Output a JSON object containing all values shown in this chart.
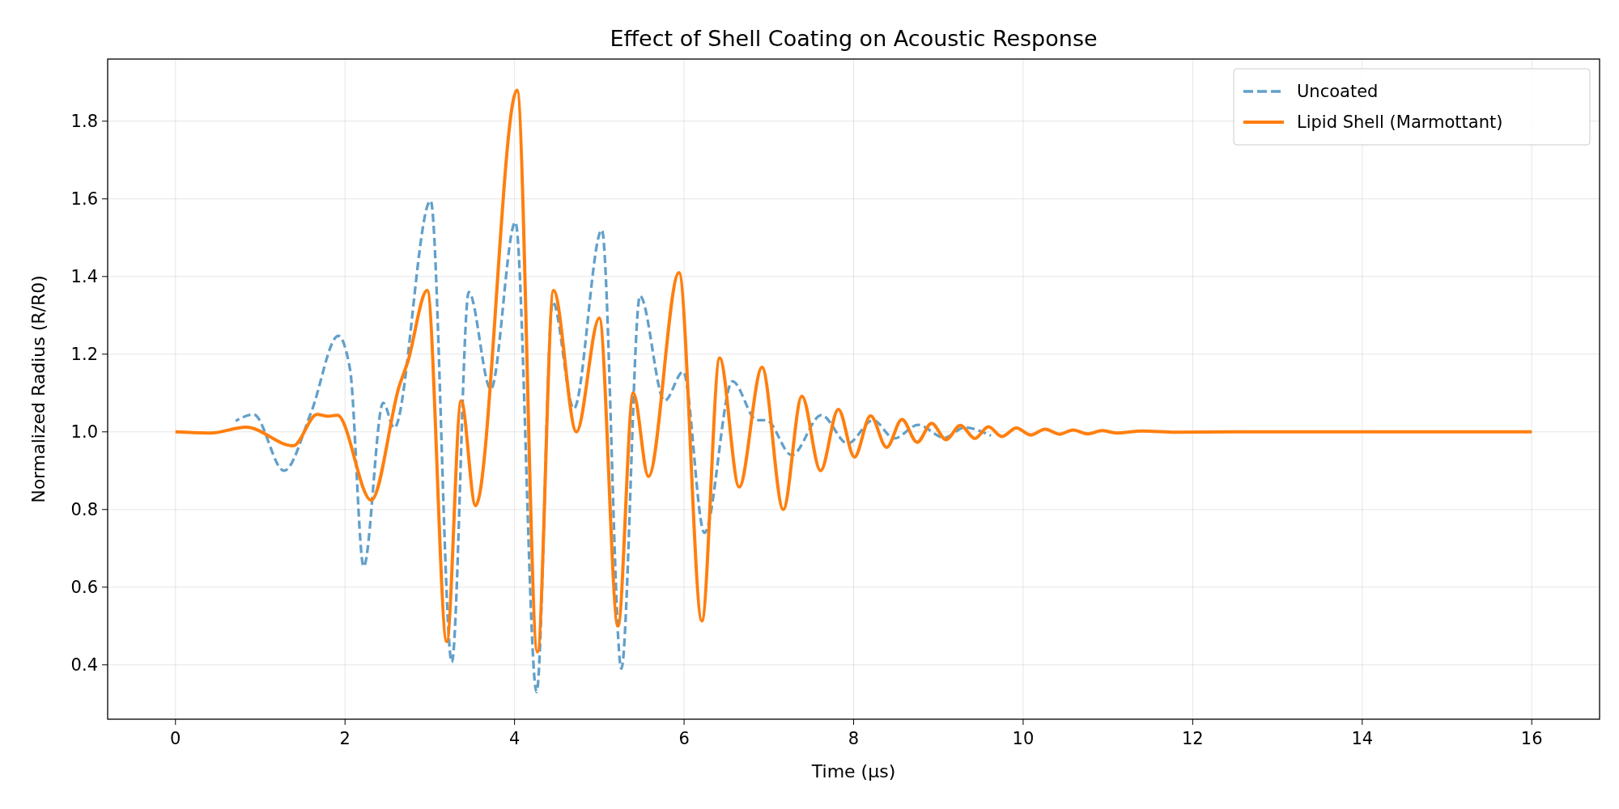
{
  "chart_data": {
    "type": "line",
    "title": "Effect of Shell Coating on Acoustic Response",
    "xlabel": "Time (μs)",
    "ylabel": "Normalized Radius (R/R0)",
    "xlim": [
      -0.8,
      16.8
    ],
    "ylim": [
      0.26,
      1.96
    ],
    "xticks": [
      0,
      2,
      4,
      6,
      8,
      10,
      12,
      14,
      16
    ],
    "yticks": [
      {
        "value": 0.4,
        "label": "0.4"
      },
      {
        "value": 0.6,
        "label": "0.6"
      },
      {
        "value": 0.8,
        "label": "0.8"
      },
      {
        "value": 1.0,
        "label": "1.0"
      },
      {
        "value": 1.2,
        "label": "1.2"
      },
      {
        "value": 1.4,
        "label": "1.4"
      },
      {
        "value": 1.6,
        "label": "1.6"
      },
      {
        "value": 1.8,
        "label": "1.8"
      }
    ],
    "grid": true,
    "legend": "top right",
    "series": [
      {
        "name": "Uncoated",
        "color": "#62a0ca",
        "line_style": "dashed",
        "x": [
          0.71,
          0.92,
          1.28,
          1.6,
          1.92,
          2.06,
          2.22,
          2.45,
          2.58,
          3.01,
          3.26,
          3.46,
          3.72,
          4.01,
          4.26,
          4.45,
          4.7,
          5.03,
          5.26,
          5.48,
          5.77,
          5.99,
          6.24,
          6.57,
          6.86,
          6.97,
          7.27,
          7.62,
          7.93,
          8.23,
          8.48,
          8.76,
          9.07,
          9.31,
          9.62
        ],
        "values": [
          1.028,
          1.045,
          0.9,
          1.05,
          1.247,
          1.16,
          0.653,
          1.075,
          1.01,
          1.595,
          0.407,
          1.36,
          1.11,
          1.54,
          0.33,
          1.335,
          1.06,
          1.52,
          0.39,
          1.35,
          1.08,
          1.155,
          0.74,
          1.13,
          1.03,
          1.03,
          0.94,
          1.043,
          0.97,
          1.03,
          0.983,
          1.018,
          0.985,
          1.011,
          0.99
        ]
      },
      {
        "name": "Lipid Shell (Marmottant)",
        "color": "#ff7f0e",
        "line_style": "solid",
        "x": [
          0,
          0.42,
          0.83,
          1.39,
          1.67,
          1.8,
          1.91,
          2.31,
          2.64,
          2.74,
          2.97,
          3.2,
          3.37,
          3.54,
          4.03,
          4.27,
          4.46,
          4.73,
          5.0,
          5.22,
          5.4,
          5.58,
          5.94,
          6.21,
          6.42,
          6.65,
          6.92,
          7.17,
          7.39,
          7.61,
          7.82,
          8.01,
          8.2,
          8.39,
          8.57,
          8.75,
          8.92,
          9.09,
          9.26,
          9.43,
          9.59,
          9.75,
          9.92,
          10.09,
          10.26,
          10.43,
          10.59,
          10.76,
          10.93,
          11.1,
          11.4,
          11.8,
          12.5,
          14,
          16
        ],
        "values": [
          1.0,
          0.997,
          1.012,
          0.964,
          1.045,
          1.04,
          1.043,
          0.824,
          1.118,
          1.18,
          1.364,
          0.46,
          1.08,
          0.81,
          1.88,
          0.433,
          1.364,
          1.0,
          1.293,
          0.5,
          1.1,
          0.885,
          1.41,
          0.513,
          1.19,
          0.858,
          1.166,
          0.8,
          1.092,
          0.9,
          1.058,
          0.935,
          1.041,
          0.96,
          1.032,
          0.973,
          1.022,
          0.98,
          1.017,
          0.983,
          1.013,
          0.988,
          1.01,
          0.992,
          1.007,
          0.994,
          1.005,
          0.995,
          1.003,
          0.997,
          1.002,
          0.999,
          1.0,
          1.0,
          1.0
        ]
      }
    ]
  }
}
